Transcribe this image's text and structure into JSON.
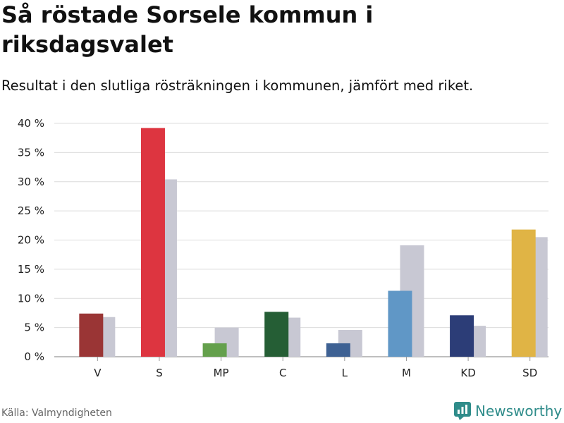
{
  "header": {
    "title": "Så röstade Sorsele kommun i riksdagsvalet",
    "subtitle": "Resultat i den slutliga rösträkningen i kommunen, jämfört med riket."
  },
  "footer": {
    "source": "Källa: Valmyndigheten",
    "brand": "Newsworthy"
  },
  "chart_data": {
    "type": "bar",
    "title": "Så röstade Sorsele kommun i riksdagsvalet",
    "subtitle": "Resultat i den slutliga rösträkningen i kommunen, jämfört med riket.",
    "xlabel": "",
    "ylabel": "",
    "ylim": [
      0,
      40
    ],
    "yticks": [
      0,
      5,
      10,
      15,
      20,
      25,
      30,
      35,
      40
    ],
    "ytick_labels": [
      "0 %",
      "5 %",
      "10 %",
      "15 %",
      "20 %",
      "25 %",
      "30 %",
      "35 %",
      "40 %"
    ],
    "grid": true,
    "categories": [
      "V",
      "S",
      "MP",
      "C",
      "L",
      "M",
      "KD",
      "SD"
    ],
    "series": [
      {
        "name": "Sorsele kommun",
        "values": [
          7.4,
          39.2,
          2.3,
          7.7,
          2.3,
          11.3,
          7.1,
          21.8
        ],
        "colors": [
          "#9a3535",
          "#dd3540",
          "#64a04c",
          "#255e35",
          "#3e6193",
          "#6097c6",
          "#2c3d77",
          "#e0b445"
        ]
      },
      {
        "name": "Riket",
        "values": [
          6.8,
          30.4,
          5.0,
          6.7,
          4.6,
          19.1,
          5.3,
          20.5
        ],
        "color": "#c8c8d3"
      }
    ]
  }
}
